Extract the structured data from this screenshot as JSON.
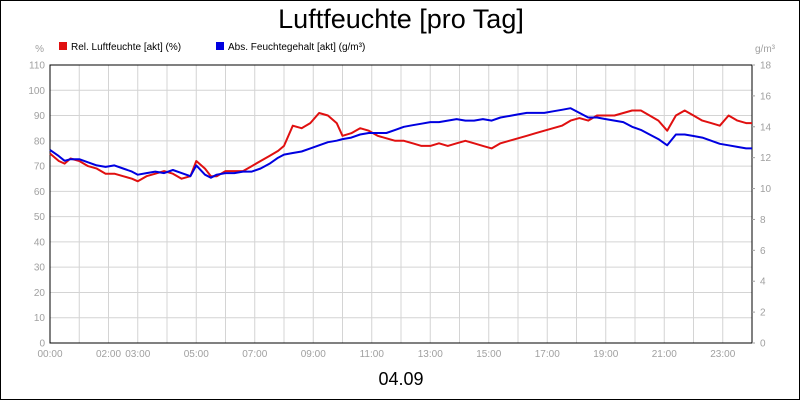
{
  "chart_data": {
    "type": "line",
    "title": "Luftfeuchte [pro Tag]",
    "date_label": "04.09",
    "left_unit": "%",
    "right_unit": "g/m³",
    "ylim_left": [
      0,
      110
    ],
    "ylim_right": [
      0,
      18
    ],
    "yticks_left": [
      "0",
      "10",
      "20",
      "30",
      "40",
      "50",
      "60",
      "70",
      "80",
      "90",
      "100",
      "110"
    ],
    "yticks_right": [
      "0",
      "2",
      "4",
      "6",
      "8",
      "10",
      "12",
      "14",
      "16",
      "18"
    ],
    "xlim_hours": [
      0,
      24
    ],
    "xticks": [
      {
        "h": 0,
        "label": "00:00"
      },
      {
        "h": 2,
        "label": "02:00"
      },
      {
        "h": 3,
        "label": "03:00"
      },
      {
        "h": 5,
        "label": "05:00"
      },
      {
        "h": 7,
        "label": "07:00"
      },
      {
        "h": 9,
        "label": "09:00"
      },
      {
        "h": 11,
        "label": "11:00"
      },
      {
        "h": 13,
        "label": "13:00"
      },
      {
        "h": 15,
        "label": "15:00"
      },
      {
        "h": 17,
        "label": "17:00"
      },
      {
        "h": 19,
        "label": "19:00"
      },
      {
        "h": 21,
        "label": "21:00"
      },
      {
        "h": 23,
        "label": "23:00"
      }
    ],
    "grid": true,
    "legend_position": "top-left",
    "series": [
      {
        "name": "Rel. Luftfeuchte [akt] (%)",
        "color": "#e01010",
        "axis": "left",
        "x": [
          0,
          0.3,
          0.5,
          0.7,
          1.0,
          1.3,
          1.6,
          1.9,
          2.2,
          2.5,
          2.8,
          3.0,
          3.3,
          3.6,
          3.9,
          4.2,
          4.5,
          4.8,
          5.0,
          5.3,
          5.5,
          5.7,
          6.0,
          6.3,
          6.6,
          6.9,
          7.2,
          7.5,
          7.8,
          8.0,
          8.3,
          8.6,
          8.9,
          9.2,
          9.5,
          9.8,
          10.0,
          10.3,
          10.6,
          10.9,
          11.2,
          11.5,
          11.8,
          12.1,
          12.4,
          12.7,
          13.0,
          13.3,
          13.6,
          13.9,
          14.2,
          14.5,
          14.8,
          15.1,
          15.4,
          15.7,
          16.0,
          16.3,
          16.6,
          16.9,
          17.2,
          17.5,
          17.8,
          18.1,
          18.4,
          18.7,
          19.0,
          19.3,
          19.6,
          19.9,
          20.2,
          20.5,
          20.8,
          21.1,
          21.4,
          21.7,
          22.0,
          22.3,
          22.6,
          22.9,
          23.2,
          23.5,
          23.8,
          24.0
        ],
        "values": [
          75,
          72,
          71,
          73,
          72,
          70,
          69,
          67,
          67,
          66,
          65,
          64,
          66,
          67,
          68,
          67,
          65,
          66,
          72,
          69,
          66,
          66,
          68,
          68,
          68,
          70,
          72,
          74,
          76,
          78,
          86,
          85,
          87,
          91,
          90,
          87,
          82,
          83,
          85,
          84,
          82,
          81,
          80,
          80,
          79,
          78,
          78,
          79,
          78,
          79,
          80,
          79,
          78,
          77,
          79,
          80,
          81,
          82,
          83,
          84,
          85,
          86,
          88,
          89,
          88,
          90,
          90,
          90,
          91,
          92,
          92,
          90,
          88,
          84,
          90,
          92,
          90,
          88,
          87,
          86,
          90,
          88,
          87,
          87
        ]
      },
      {
        "name": "Abs. Feuchtegehalt [akt] (g/m³)",
        "color": "#0000e0",
        "axis": "right",
        "x": [
          0,
          0.3,
          0.5,
          0.7,
          1.0,
          1.3,
          1.6,
          1.9,
          2.2,
          2.5,
          2.8,
          3.0,
          3.3,
          3.6,
          3.9,
          4.2,
          4.5,
          4.8,
          5.0,
          5.3,
          5.5,
          5.7,
          6.0,
          6.3,
          6.6,
          6.9,
          7.2,
          7.5,
          7.8,
          8.0,
          8.3,
          8.6,
          8.9,
          9.2,
          9.5,
          9.8,
          10.0,
          10.3,
          10.6,
          10.9,
          11.2,
          11.5,
          11.8,
          12.1,
          12.4,
          12.7,
          13.0,
          13.3,
          13.6,
          13.9,
          14.2,
          14.5,
          14.8,
          15.1,
          15.4,
          15.7,
          16.0,
          16.3,
          16.6,
          16.9,
          17.2,
          17.5,
          17.8,
          18.1,
          18.4,
          18.7,
          19.0,
          19.3,
          19.6,
          19.9,
          20.2,
          20.5,
          20.8,
          21.1,
          21.4,
          21.7,
          22.0,
          22.3,
          22.6,
          22.9,
          23.2,
          23.5,
          23.8,
          24.0
        ],
        "values": [
          12.5,
          12.1,
          11.8,
          11.9,
          11.9,
          11.7,
          11.5,
          11.4,
          11.5,
          11.3,
          11.1,
          10.9,
          11.0,
          11.1,
          11.0,
          11.2,
          11.0,
          10.8,
          11.5,
          10.9,
          10.7,
          10.9,
          11.0,
          11.0,
          11.1,
          11.1,
          11.3,
          11.6,
          12.0,
          12.2,
          12.3,
          12.4,
          12.6,
          12.8,
          13.0,
          13.1,
          13.2,
          13.3,
          13.5,
          13.6,
          13.6,
          13.6,
          13.8,
          14.0,
          14.1,
          14.2,
          14.3,
          14.3,
          14.4,
          14.5,
          14.4,
          14.4,
          14.5,
          14.4,
          14.6,
          14.7,
          14.8,
          14.9,
          14.9,
          14.9,
          15.0,
          15.1,
          15.2,
          14.9,
          14.6,
          14.6,
          14.5,
          14.4,
          14.3,
          14.0,
          13.8,
          13.5,
          13.2,
          12.8,
          13.5,
          13.5,
          13.4,
          13.3,
          13.1,
          12.9,
          12.8,
          12.7,
          12.6,
          12.6
        ]
      }
    ]
  }
}
